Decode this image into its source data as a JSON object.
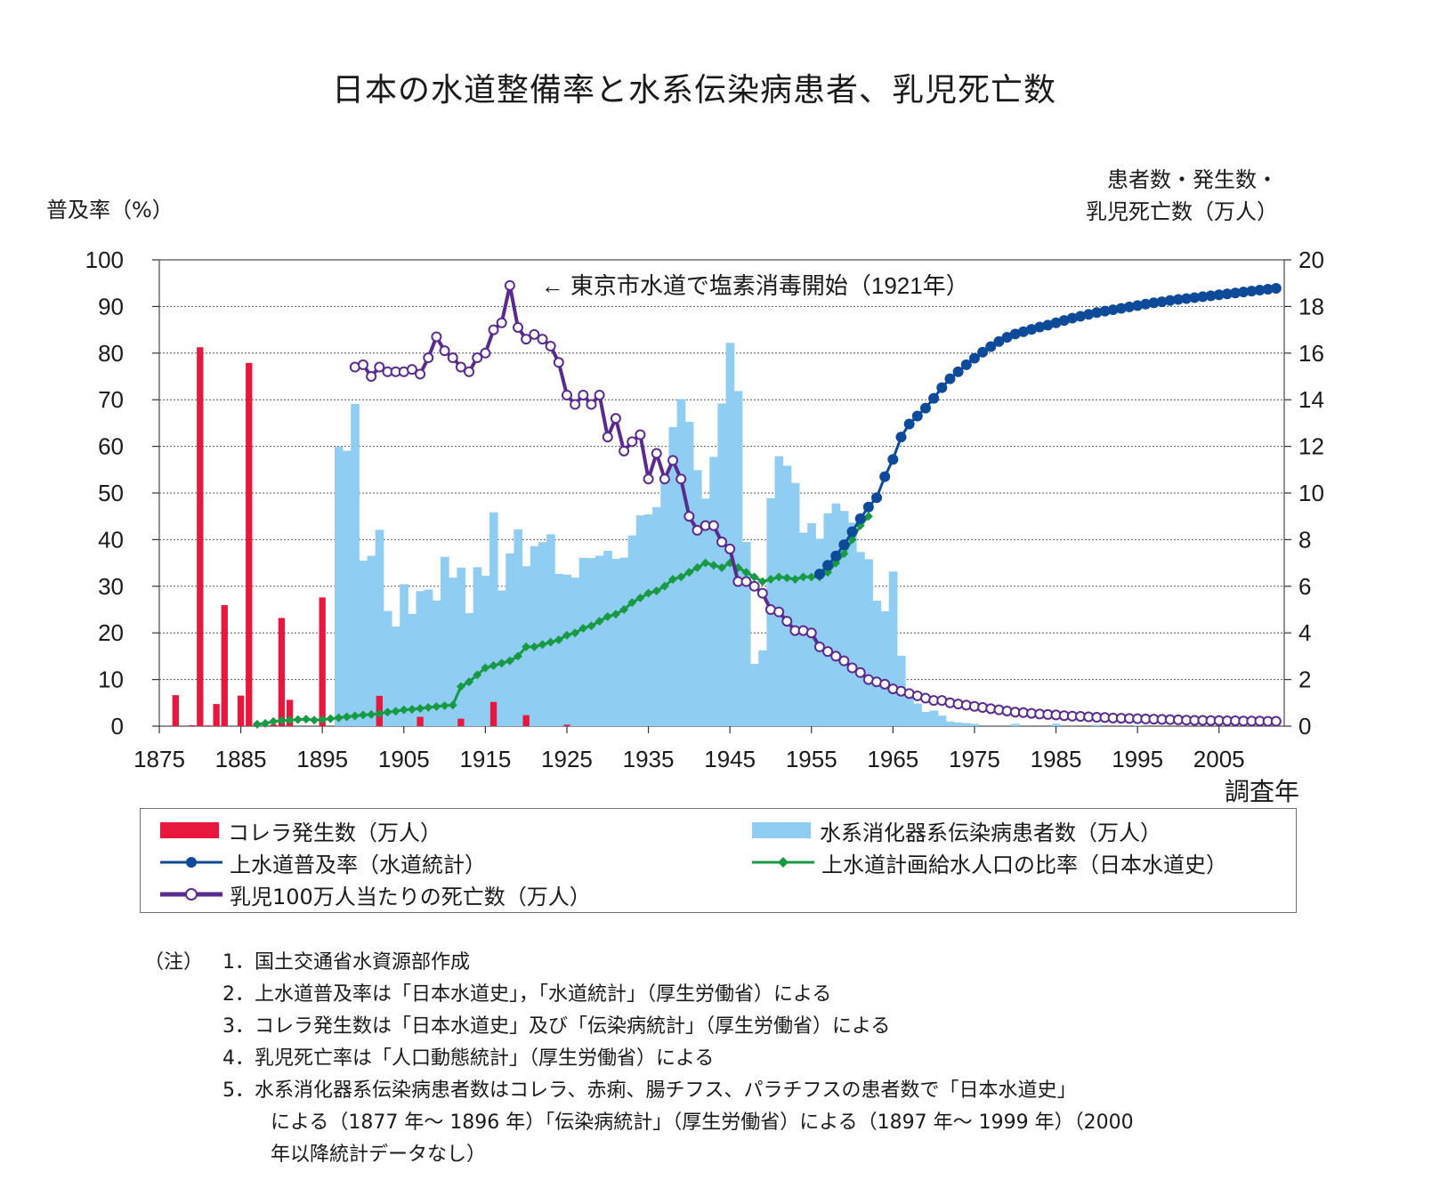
{
  "chart_data": {
    "type": "bar+line",
    "title": "日本の水道整備率と水系伝染病患者、乳児死亡数",
    "ylabel_left": "普及率（%）",
    "ylabel_right_line1": "患者数・発生数・",
    "ylabel_right_line2": "乳児死亡数（万人）",
    "xlabel": "調査年",
    "xlim": [
      1875,
      2013
    ],
    "ylim_left": [
      0,
      100
    ],
    "ylim_right": [
      0,
      20
    ],
    "x_ticks": [
      1875,
      1885,
      1895,
      1905,
      1915,
      1925,
      1935,
      1945,
      1955,
      1965,
      1975,
      1985,
      1995,
      2005
    ],
    "y_ticks_left": [
      0,
      10,
      20,
      30,
      40,
      50,
      60,
      70,
      80,
      90,
      100
    ],
    "y_ticks_right": [
      0,
      2,
      4,
      6,
      8,
      10,
      12,
      14,
      16,
      18,
      20
    ],
    "grid": true,
    "annotation": "← 東京市水道で塩素消毒開始（1921年）",
    "series": [
      {
        "name": "コレラ発生数（万人）",
        "kind": "bar",
        "axis": "right",
        "color": "#e8173e",
        "x": [
          1877,
          1879,
          1880,
          1881,
          1882,
          1883,
          1885,
          1886,
          1887,
          1889,
          1890,
          1891,
          1895,
          1902,
          1907,
          1912,
          1916,
          1920,
          1925
        ],
        "values": [
          1.33,
          0.04,
          16.25,
          0.03,
          0.95,
          5.19,
          1.31,
          15.58,
          0.03,
          0.07,
          4.64,
          1.13,
          5.52,
          1.3,
          0.4,
          0.32,
          1.04,
          0.47,
          0.06
        ]
      },
      {
        "name": "水系消化器系伝染病患者数（万人）",
        "kind": "bar",
        "axis": "right",
        "color": "#8fcdf2",
        "x": [
          1897,
          1898,
          1899,
          1900,
          1901,
          1902,
          1903,
          1904,
          1905,
          1906,
          1907,
          1908,
          1909,
          1910,
          1911,
          1912,
          1913,
          1914,
          1915,
          1916,
          1917,
          1918,
          1919,
          1920,
          1921,
          1922,
          1923,
          1924,
          1925,
          1926,
          1927,
          1928,
          1929,
          1930,
          1931,
          1932,
          1933,
          1934,
          1935,
          1936,
          1937,
          1938,
          1939,
          1940,
          1941,
          1942,
          1943,
          1944,
          1945,
          1946,
          1947,
          1948,
          1949,
          1950,
          1951,
          1952,
          1953,
          1954,
          1955,
          1956,
          1957,
          1958,
          1959,
          1960,
          1961,
          1962,
          1963,
          1964,
          1965,
          1966,
          1967,
          1968,
          1969,
          1970,
          1971,
          1972,
          1973,
          1974,
          1975,
          1980,
          1985,
          1990,
          1995
        ],
        "values": [
          11.98,
          11.81,
          13.82,
          7.1,
          7.31,
          8.42,
          4.94,
          4.27,
          6.09,
          4.81,
          5.79,
          5.86,
          5.39,
          7.26,
          6.37,
          6.8,
          4.85,
          6.82,
          6.45,
          9.17,
          5.82,
          7.41,
          8.44,
          6.86,
          7.72,
          7.89,
          8.23,
          6.53,
          6.5,
          6.37,
          7.22,
          7.21,
          7.31,
          7.52,
          7.17,
          7.23,
          8.18,
          9.04,
          9.08,
          9.39,
          10.55,
          12.83,
          14.03,
          13.05,
          10.98,
          9.76,
          11.55,
          13.84,
          16.44,
          14.37,
          7.9,
          2.67,
          3.25,
          9.78,
          11.58,
          11.17,
          10.43,
          8.3,
          8.7,
          8.04,
          9.13,
          9.55,
          9.23,
          8.73,
          7.47,
          7.16,
          5.38,
          4.93,
          6.63,
          3.02,
          1.2,
          0.97,
          0.61,
          0.67,
          0.45,
          0.2,
          0.16,
          0.13,
          0.1,
          0.1,
          0.1,
          0.06,
          0.03
        ]
      },
      {
        "name": "上水道普及率（水道統計）",
        "kind": "line",
        "axis": "left",
        "color": "#0e4a9a",
        "marker": "filled-circle",
        "x": [
          1956,
          1957,
          1958,
          1959,
          1960,
          1961,
          1962,
          1963,
          1964,
          1965,
          1966,
          1967,
          1968,
          1969,
          1970,
          1971,
          1972,
          1973,
          1974,
          1975,
          1976,
          1977,
          1978,
          1979,
          1980,
          1981,
          1982,
          1983,
          1984,
          1985,
          1986,
          1987,
          1988,
          1989,
          1990,
          1991,
          1992,
          1993,
          1994,
          1995,
          1996,
          1997,
          1998,
          1999,
          2000,
          2001,
          2002,
          2003,
          2004,
          2005,
          2006,
          2007,
          2008,
          2009,
          2010,
          2011,
          2012
        ],
        "values": [
          32.6,
          34.5,
          36.5,
          38.9,
          41.7,
          44.5,
          47.0,
          49.0,
          53.5,
          57.2,
          62.0,
          64.8,
          66.5,
          68.2,
          70.3,
          72.6,
          74.5,
          76.0,
          77.5,
          78.9,
          80.2,
          81.4,
          82.5,
          83.4,
          84.1,
          84.6,
          85.1,
          85.6,
          86.0,
          86.5,
          87.0,
          87.5,
          87.9,
          88.3,
          88.7,
          89.0,
          89.3,
          89.6,
          89.9,
          90.2,
          90.5,
          90.8,
          91.0,
          91.3,
          91.5,
          91.7,
          91.9,
          92.1,
          92.3,
          92.5,
          92.7,
          92.9,
          93.1,
          93.3,
          93.5,
          93.7,
          93.9
        ]
      },
      {
        "name": "上水道計画給水人口の比率（日本水道史）",
        "kind": "line",
        "axis": "left",
        "color": "#179a43",
        "marker": "diamond",
        "x": [
          1887,
          1888,
          1889,
          1890,
          1891,
          1892,
          1893,
          1894,
          1895,
          1896,
          1897,
          1898,
          1899,
          1900,
          1901,
          1902,
          1903,
          1904,
          1905,
          1906,
          1907,
          1908,
          1909,
          1910,
          1911,
          1912,
          1913,
          1914,
          1915,
          1916,
          1917,
          1918,
          1919,
          1920,
          1921,
          1922,
          1923,
          1924,
          1925,
          1926,
          1927,
          1928,
          1929,
          1930,
          1931,
          1932,
          1933,
          1934,
          1935,
          1936,
          1937,
          1938,
          1939,
          1940,
          1941,
          1942,
          1943,
          1944,
          1945,
          1946,
          1947,
          1948,
          1949,
          1950,
          1951,
          1952,
          1953,
          1954,
          1955,
          1956,
          1957,
          1958,
          1959,
          1960,
          1961,
          1962
        ],
        "values": [
          0.4,
          0.6,
          1.0,
          1.2,
          1.3,
          1.4,
          1.5,
          1.3,
          1.4,
          1.6,
          1.8,
          2.0,
          2.2,
          2.4,
          2.5,
          2.7,
          3.0,
          3.2,
          3.5,
          3.6,
          3.8,
          4.0,
          4.2,
          4.4,
          4.5,
          8.5,
          9.5,
          11.0,
          12.5,
          13.0,
          13.5,
          14.0,
          15.0,
          17.0,
          17.0,
          17.5,
          18.0,
          18.5,
          19.5,
          20.0,
          21.0,
          21.5,
          22.5,
          23.5,
          24.0,
          25.0,
          26.5,
          27.5,
          28.5,
          29.0,
          30.0,
          31.5,
          32.0,
          33.0,
          34.0,
          35.0,
          34.5,
          34.0,
          35.0,
          34.0,
          33.0,
          32.0,
          31.0,
          31.5,
          32.0,
          31.8,
          31.5,
          32.0,
          32.0,
          32.0,
          33.0,
          35.0,
          37.0,
          40.0,
          43.0,
          45.0
        ]
      },
      {
        "name": "乳児100万人当たりの死亡数（万人）",
        "kind": "line",
        "axis": "right",
        "color": "#5a2b8e",
        "marker": "open-circle",
        "x": [
          1899,
          1900,
          1901,
          1902,
          1903,
          1904,
          1905,
          1906,
          1907,
          1908,
          1909,
          1910,
          1911,
          1912,
          1913,
          1914,
          1915,
          1916,
          1917,
          1918,
          1919,
          1920,
          1921,
          1922,
          1923,
          1924,
          1925,
          1926,
          1927,
          1928,
          1929,
          1930,
          1931,
          1932,
          1933,
          1934,
          1935,
          1936,
          1937,
          1938,
          1939,
          1940,
          1941,
          1942,
          1943,
          1944,
          1945,
          1946,
          1947,
          1948,
          1949,
          1950,
          1951,
          1952,
          1953,
          1954,
          1955,
          1956,
          1957,
          1958,
          1959,
          1960,
          1961,
          1962,
          1963,
          1964,
          1965,
          1966,
          1967,
          1968,
          1969,
          1970,
          1971,
          1972,
          1973,
          1974,
          1975,
          1976,
          1977,
          1978,
          1979,
          1980,
          1981,
          1982,
          1983,
          1984,
          1985,
          1986,
          1987,
          1988,
          1989,
          1990,
          1991,
          1992,
          1993,
          1994,
          1995,
          1996,
          1997,
          1998,
          1999,
          2000,
          2001,
          2002,
          2003,
          2004,
          2005,
          2006,
          2007,
          2008,
          2009,
          2010,
          2011,
          2012
        ],
        "values": [
          15.4,
          15.5,
          15.0,
          15.4,
          15.2,
          15.2,
          15.2,
          15.3,
          15.1,
          15.8,
          16.7,
          16.1,
          15.8,
          15.4,
          15.2,
          15.8,
          16.0,
          17.0,
          17.3,
          18.9,
          17.1,
          16.6,
          16.8,
          16.6,
          16.3,
          15.6,
          14.2,
          13.8,
          14.2,
          13.8,
          14.2,
          12.4,
          13.2,
          11.8,
          12.2,
          12.5,
          10.6,
          11.7,
          10.6,
          11.4,
          10.6,
          9.0,
          8.4,
          8.6,
          8.6,
          7.9,
          7.6,
          6.2,
          6.2,
          6.0,
          5.7,
          5.0,
          4.9,
          4.5,
          4.1,
          4.1,
          4.0,
          3.4,
          3.2,
          3.0,
          2.8,
          2.5,
          2.3,
          2.0,
          1.9,
          1.8,
          1.6,
          1.5,
          1.4,
          1.3,
          1.2,
          1.1,
          1.1,
          1.0,
          0.95,
          0.9,
          0.85,
          0.8,
          0.75,
          0.7,
          0.65,
          0.6,
          0.58,
          0.55,
          0.52,
          0.5,
          0.48,
          0.45,
          0.43,
          0.42,
          0.4,
          0.38,
          0.37,
          0.35,
          0.34,
          0.33,
          0.32,
          0.31,
          0.3,
          0.29,
          0.28,
          0.27,
          0.26,
          0.25,
          0.25,
          0.24,
          0.24,
          0.23,
          0.23,
          0.22,
          0.22,
          0.22,
          0.21,
          0.21
        ]
      }
    ]
  },
  "notes": {
    "prefix": "（注）",
    "items": [
      "1．国土交通省水資源部作成",
      "2．上水道普及率は「日本水道史」，「水道統計」（厚生労働省）による",
      "3．コレラ発生数は「日本水道史」及び「伝染病統計」（厚生労働省）による",
      "4．乳児死亡率は「人口動態統計」（厚生労働省）による",
      "5．水系消化器系伝染病患者数はコレラ、赤痢、腸チフス、パラチフスの患者数で「日本水道史」",
      "による（1877 年〜 1896 年）「伝染病統計」（厚生労働省）による（1897 年〜 1999 年）（2000",
      "年以降統計データなし）"
    ]
  }
}
